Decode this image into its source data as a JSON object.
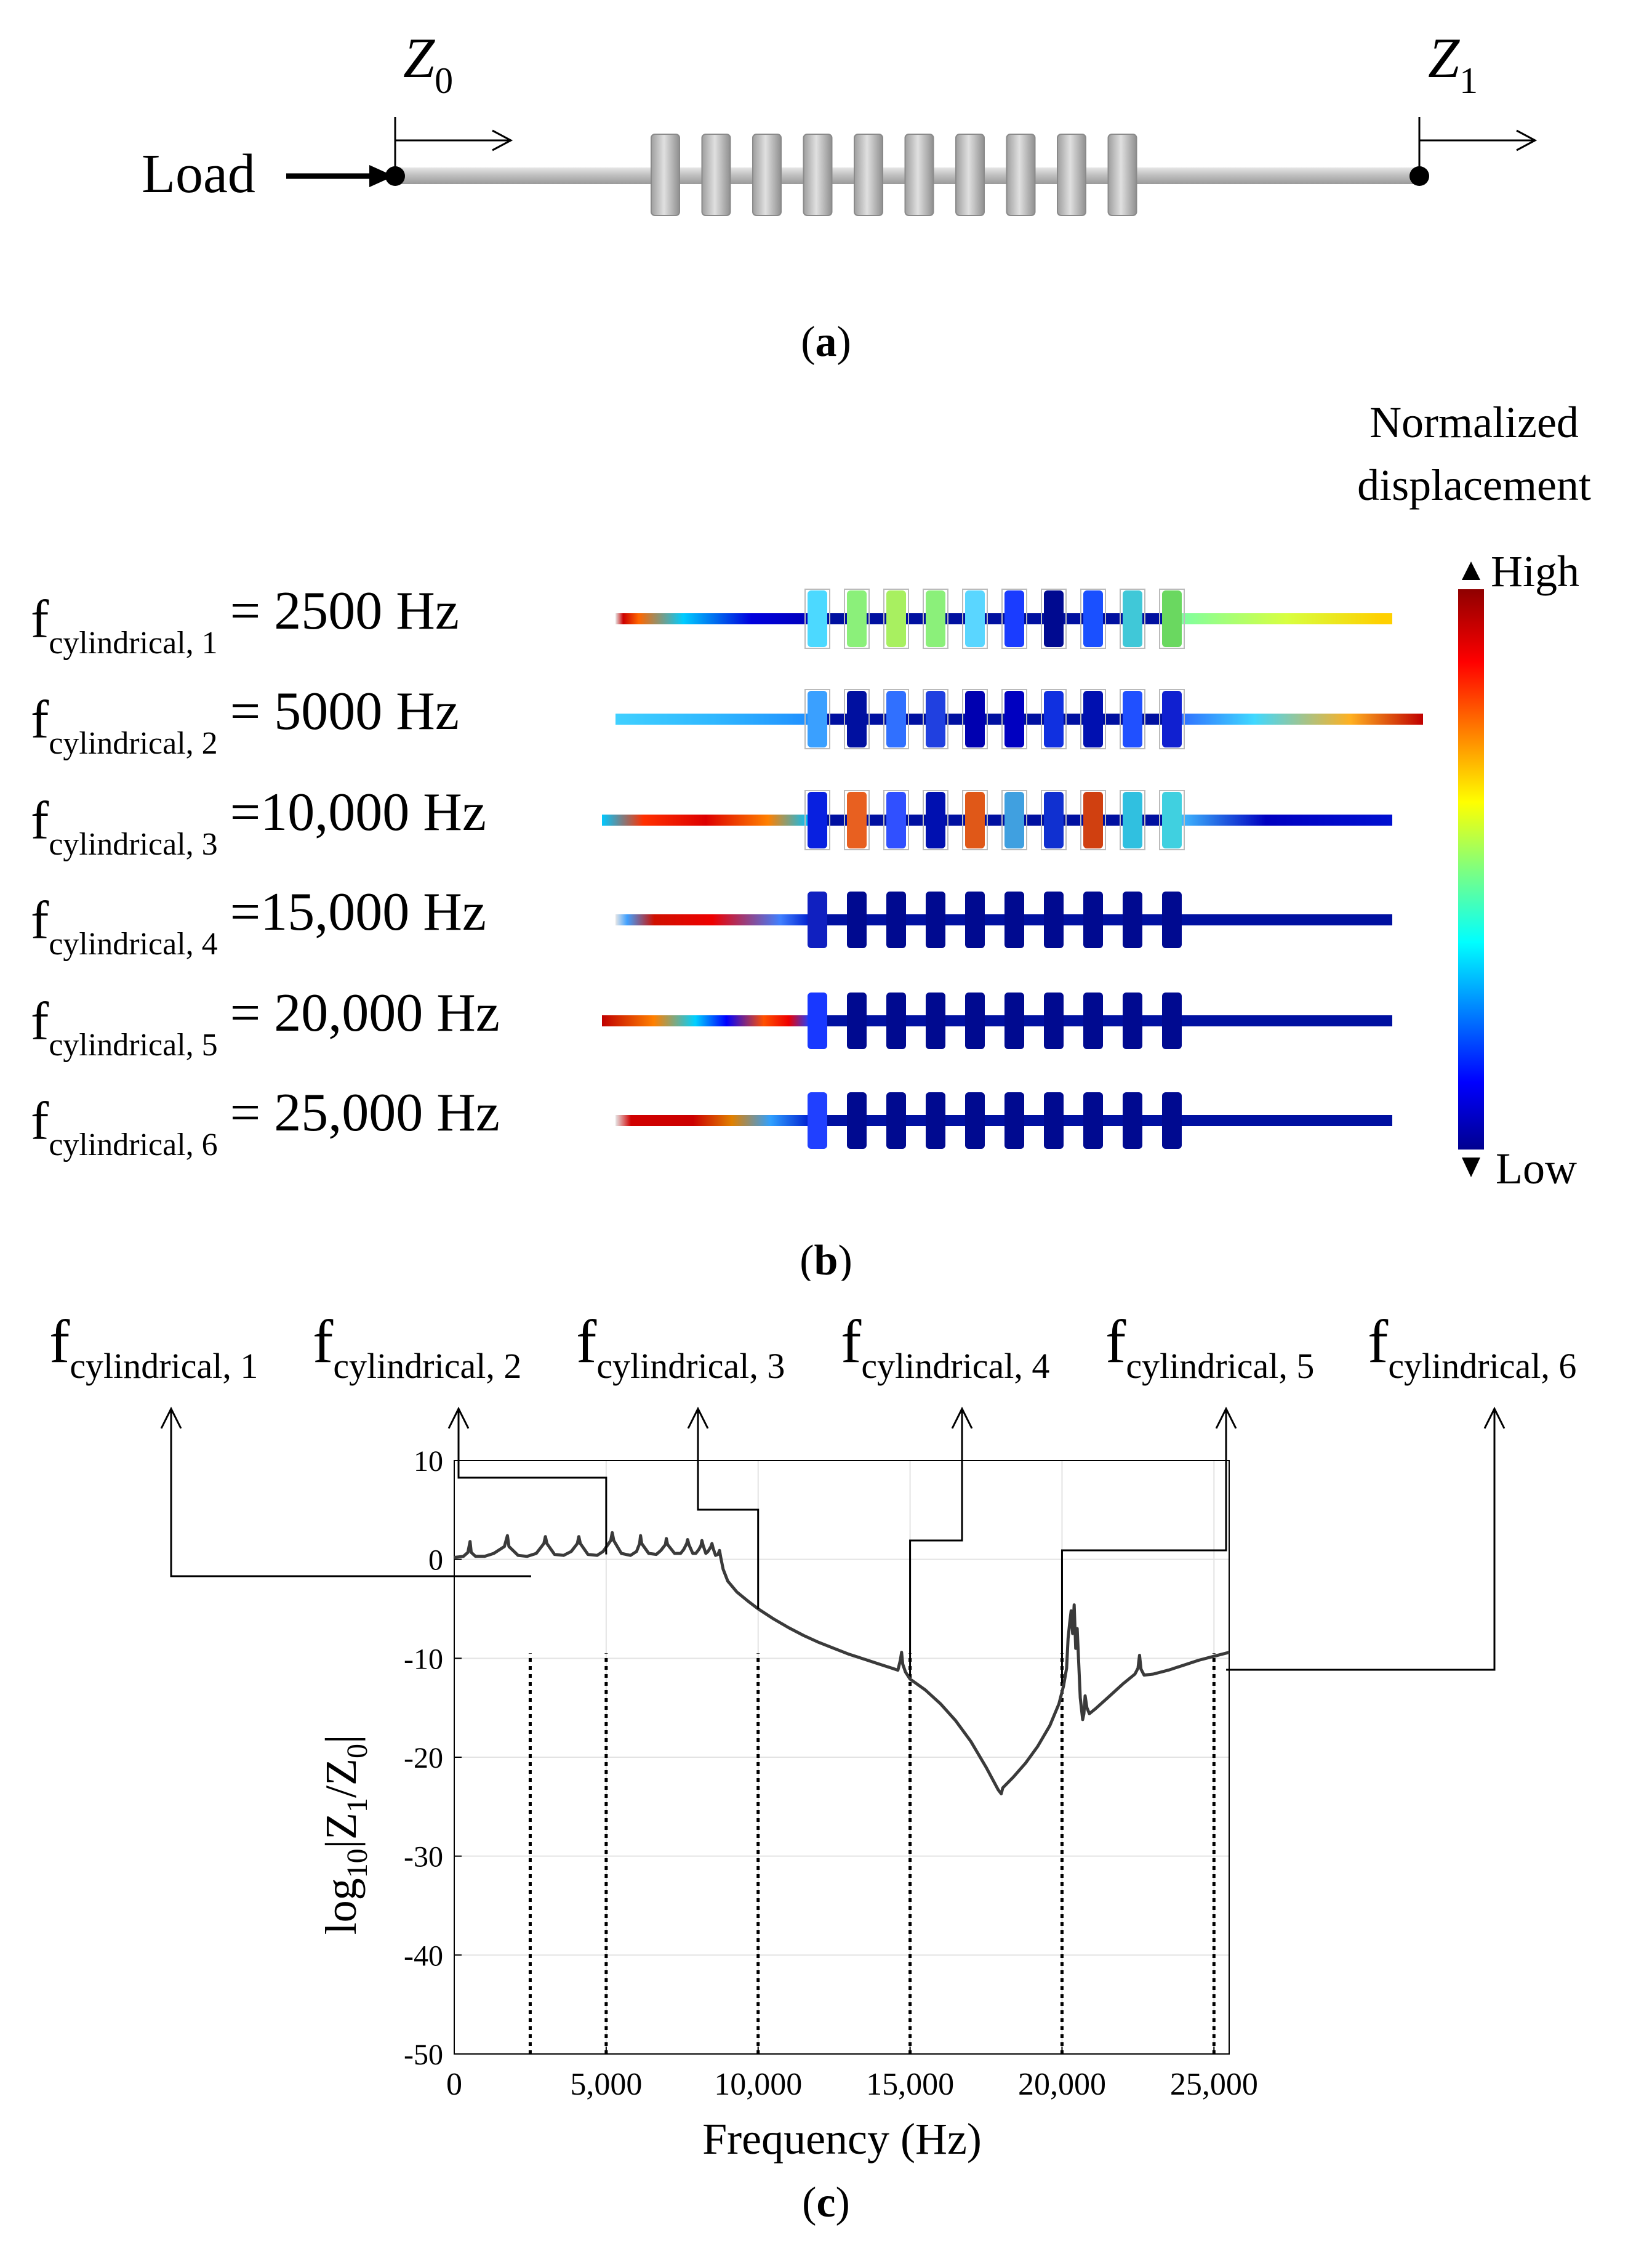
{
  "panel_a": {
    "load_label": "Load",
    "z0": "Z",
    "z0_sub": "0",
    "z1": "Z",
    "z1_sub": "1",
    "caption_letter": "a"
  },
  "panel_b": {
    "legend_title_1": "Normalized",
    "legend_title_2": "displacement",
    "legend_high": "High",
    "legend_low": "Low",
    "caption_letter": "b",
    "rows": [
      {
        "f": "f",
        "sub": "cylindrical, 1",
        "eq": "= 2500 Hz"
      },
      {
        "f": "f",
        "sub": "cylindrical, 2",
        "eq": "= 5000 Hz"
      },
      {
        "f": "f",
        "sub": "cylindrical, 3",
        "eq": "=10,000 Hz"
      },
      {
        "f": "f",
        "sub": "cylindrical, 4",
        "eq": "=15,000 Hz"
      },
      {
        "f": "f",
        "sub": "cylindrical, 5",
        "eq": "= 20,000 Hz"
      },
      {
        "f": "f",
        "sub": "cylindrical, 6",
        "eq": "= 25,000 Hz"
      }
    ]
  },
  "panel_c": {
    "caption_letter": "c",
    "top_labels": [
      {
        "f": "f",
        "sub": "cylindrical, 1"
      },
      {
        "f": "f",
        "sub": "cylindrical, 2"
      },
      {
        "f": "f",
        "sub": "cylindrical, 3"
      },
      {
        "f": "f",
        "sub": "cylindrical, 4"
      },
      {
        "f": "f",
        "sub": "cylindrical, 5"
      },
      {
        "f": "f",
        "sub": "cylindrical, 6"
      }
    ]
  },
  "chart_data": {
    "type": "line",
    "xlabel": "Frequency (Hz)",
    "ylabel": "log10|Z1/Z0|",
    "ylabel_parts": {
      "pre": "log",
      "sub1": "10",
      "mid": "|Z",
      "sub2": "1",
      "mid2": "/Z",
      "sub3": "0",
      "post": "|"
    },
    "xlim": [
      0,
      25500
    ],
    "ylim": [
      -50,
      10
    ],
    "xticks": [
      0,
      5000,
      10000,
      15000,
      20000,
      25000
    ],
    "xtick_labels": [
      "0",
      "5,000",
      "10,000",
      "15,000",
      "20,000",
      "25,000"
    ],
    "yticks": [
      10,
      0,
      -10,
      -20,
      -30,
      -40,
      -50
    ],
    "ytick_labels": [
      "10",
      "0",
      "-10",
      "-20",
      "-30",
      "-40",
      "-50"
    ],
    "grid": true,
    "marked_frequencies": [
      2500,
      5000,
      10000,
      15000,
      20000,
      25000
    ],
    "series": [
      {
        "name": "log10|Z1/Z0|",
        "color": "#3a3a3a",
        "points": [
          [
            0,
            0.2
          ],
          [
            300,
            0.3
          ],
          [
            450,
            0.7
          ],
          [
            520,
            1.8
          ],
          [
            560,
            0.7
          ],
          [
            700,
            0.3
          ],
          [
            1000,
            0.3
          ],
          [
            1300,
            0.6
          ],
          [
            1650,
            1.3
          ],
          [
            1750,
            2.4
          ],
          [
            1800,
            1.3
          ],
          [
            2100,
            0.4
          ],
          [
            2400,
            0.3
          ],
          [
            2700,
            0.6
          ],
          [
            2950,
            1.6
          ],
          [
            3000,
            2.3
          ],
          [
            3050,
            1.6
          ],
          [
            3300,
            0.5
          ],
          [
            3600,
            0.4
          ],
          [
            3850,
            0.8
          ],
          [
            4050,
            1.6
          ],
          [
            4100,
            2.3
          ],
          [
            4150,
            1.6
          ],
          [
            4400,
            0.5
          ],
          [
            4700,
            0.4
          ],
          [
            4900,
            0.8
          ],
          [
            5150,
            1.9
          ],
          [
            5200,
            2.7
          ],
          [
            5250,
            1.9
          ],
          [
            5500,
            0.6
          ],
          [
            5800,
            0.4
          ],
          [
            6000,
            0.8
          ],
          [
            6100,
            1.6
          ],
          [
            6130,
            2.4
          ],
          [
            6170,
            1.6
          ],
          [
            6400,
            0.6
          ],
          [
            6650,
            0.5
          ],
          [
            6800,
            0.9
          ],
          [
            6950,
            1.5
          ],
          [
            6980,
            2.1
          ],
          [
            7020,
            1.5
          ],
          [
            7250,
            0.6
          ],
          [
            7450,
            0.6
          ],
          [
            7550,
            1.0
          ],
          [
            7650,
            1.6
          ],
          [
            7680,
            2.0
          ],
          [
            7720,
            1.5
          ],
          [
            7850,
            0.6
          ],
          [
            7950,
            0.6
          ],
          [
            8050,
            1.0
          ],
          [
            8120,
            1.4
          ],
          [
            8150,
            1.9
          ],
          [
            8190,
            1.4
          ],
          [
            8280,
            0.6
          ],
          [
            8350,
            0.8
          ],
          [
            8450,
            1.3
          ],
          [
            8480,
            1.6
          ],
          [
            8520,
            1.1
          ],
          [
            8600,
            0.4
          ],
          [
            8680,
            0.5
          ],
          [
            8730,
            0.9
          ],
          [
            8770,
            0.2
          ],
          [
            8850,
            -1.0
          ],
          [
            9000,
            -2.2
          ],
          [
            9300,
            -3.3
          ],
          [
            9700,
            -4.3
          ],
          [
            10000,
            -5.0
          ],
          [
            10500,
            -6.0
          ],
          [
            11000,
            -6.9
          ],
          [
            11500,
            -7.7
          ],
          [
            12000,
            -8.4
          ],
          [
            12500,
            -9.0
          ],
          [
            13000,
            -9.6
          ],
          [
            13500,
            -10.1
          ],
          [
            14000,
            -10.6
          ],
          [
            14400,
            -11.0
          ],
          [
            14600,
            -11.2
          ],
          [
            14680,
            -10.2
          ],
          [
            14720,
            -9.4
          ],
          [
            14760,
            -10.6
          ],
          [
            14850,
            -11.4
          ],
          [
            15000,
            -12.1
          ],
          [
            15500,
            -13.2
          ],
          [
            16000,
            -14.6
          ],
          [
            16500,
            -16.3
          ],
          [
            17000,
            -18.4
          ],
          [
            17500,
            -21.0
          ],
          [
            17900,
            -23.3
          ],
          [
            18000,
            -23.7
          ],
          [
            18050,
            -23.1
          ],
          [
            18400,
            -22.0
          ],
          [
            18800,
            -20.6
          ],
          [
            19200,
            -18.9
          ],
          [
            19600,
            -16.8
          ],
          [
            19900,
            -14.6
          ],
          [
            20050,
            -12.8
          ],
          [
            20150,
            -11.0
          ],
          [
            20200,
            -8.0
          ],
          [
            20250,
            -6.5
          ],
          [
            20300,
            -5.2
          ],
          [
            20350,
            -7.5
          ],
          [
            20400,
            -4.6
          ],
          [
            20450,
            -9.0
          ],
          [
            20500,
            -7.0
          ],
          [
            20550,
            -10.5
          ],
          [
            20600,
            -14.0
          ],
          [
            20680,
            -16.2
          ],
          [
            20720,
            -15.6
          ],
          [
            20760,
            -13.8
          ],
          [
            20820,
            -15.0
          ],
          [
            20900,
            -15.6
          ],
          [
            21100,
            -15.1
          ],
          [
            21500,
            -14.0
          ],
          [
            22000,
            -12.6
          ],
          [
            22400,
            -11.6
          ],
          [
            22500,
            -11.0
          ],
          [
            22550,
            -9.7
          ],
          [
            22600,
            -11.1
          ],
          [
            22700,
            -11.7
          ],
          [
            23000,
            -11.6
          ],
          [
            23500,
            -11.2
          ],
          [
            24000,
            -10.7
          ],
          [
            24500,
            -10.2
          ],
          [
            25000,
            -9.8
          ],
          [
            25500,
            -9.4
          ]
        ]
      }
    ]
  }
}
